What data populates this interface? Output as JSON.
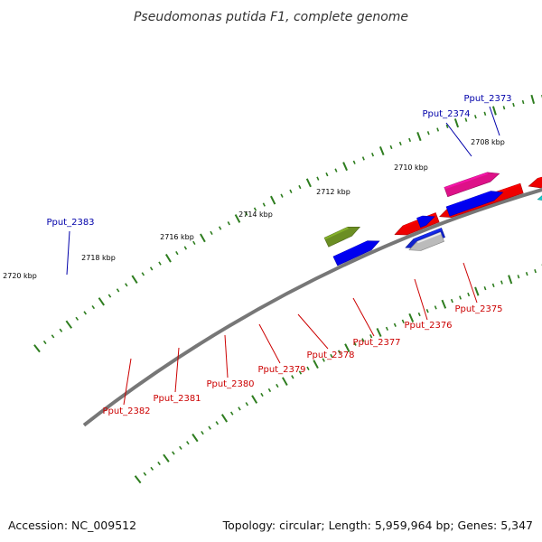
{
  "title": "Pseudomonas putida F1, complete genome",
  "footer": {
    "accession": "Accession: NC_009512",
    "summary": "Topology: circular; Length: 5,959,964 bp; Genes: 5,347"
  },
  "colors": {
    "forward_label": "#0000aa",
    "reverse_label": "#cc0000",
    "tick": "#2e7d1f",
    "backbone": "#777777"
  },
  "scale_labels": [
    "2708 kbp",
    "2710 kbp",
    "2712 kbp",
    "2714 kbp",
    "2716 kbp",
    "2718 kbp",
    "2720 kbp"
  ],
  "forward_gene_labels": [
    "Pput_2373",
    "Pput_2374",
    "Pput_2383"
  ],
  "reverse_gene_labels": [
    "Pput_2375",
    "Pput_2376",
    "Pput_2377",
    "Pput_2378",
    "Pput_2379",
    "Pput_2380",
    "Pput_2381",
    "Pput_2382"
  ]
}
